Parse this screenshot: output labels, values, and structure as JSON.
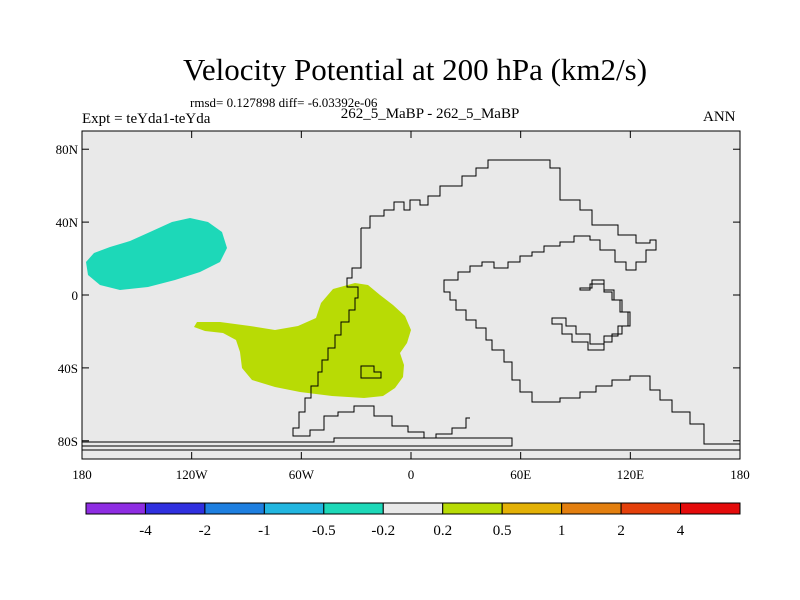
{
  "title": "Velocity Potential at 200 hPa (km2/s)",
  "stats": "rmsd= 0.127898 diff= -6.03392e-06",
  "experiment": "Expt = teYda1-teYda",
  "cases": "262_5_MaBP - 262_5_MaBP",
  "season": "ANN",
  "map": {
    "background_color": "#e9e9e9",
    "lat_ticks": [
      "80N",
      "40N",
      "0",
      "40S",
      "80S"
    ],
    "lon_ticks": [
      "180",
      "120W",
      "60W",
      "0",
      "60E",
      "120E",
      "180"
    ]
  },
  "colorbar": {
    "colors": [
      "#8e2de2",
      "#3030df",
      "#1e7fe0",
      "#22b6e0",
      "#1dd8b8",
      "#e9e9e9",
      "#b8db05",
      "#e3b106",
      "#e37f0f",
      "#e4400b",
      "#e40b0b"
    ],
    "labels": [
      "-4",
      "-2",
      "-1",
      "-0.5",
      "-0.2",
      "0.2",
      "0.5",
      "1",
      "2",
      "4"
    ]
  },
  "regions": [
    {
      "name": "positive-anomaly",
      "color": "#b8db05",
      "range": "0.2 to 0.5"
    },
    {
      "name": "negative-anomaly",
      "color": "#1dd8b8",
      "range": "-0.5 to -0.2"
    }
  ]
}
